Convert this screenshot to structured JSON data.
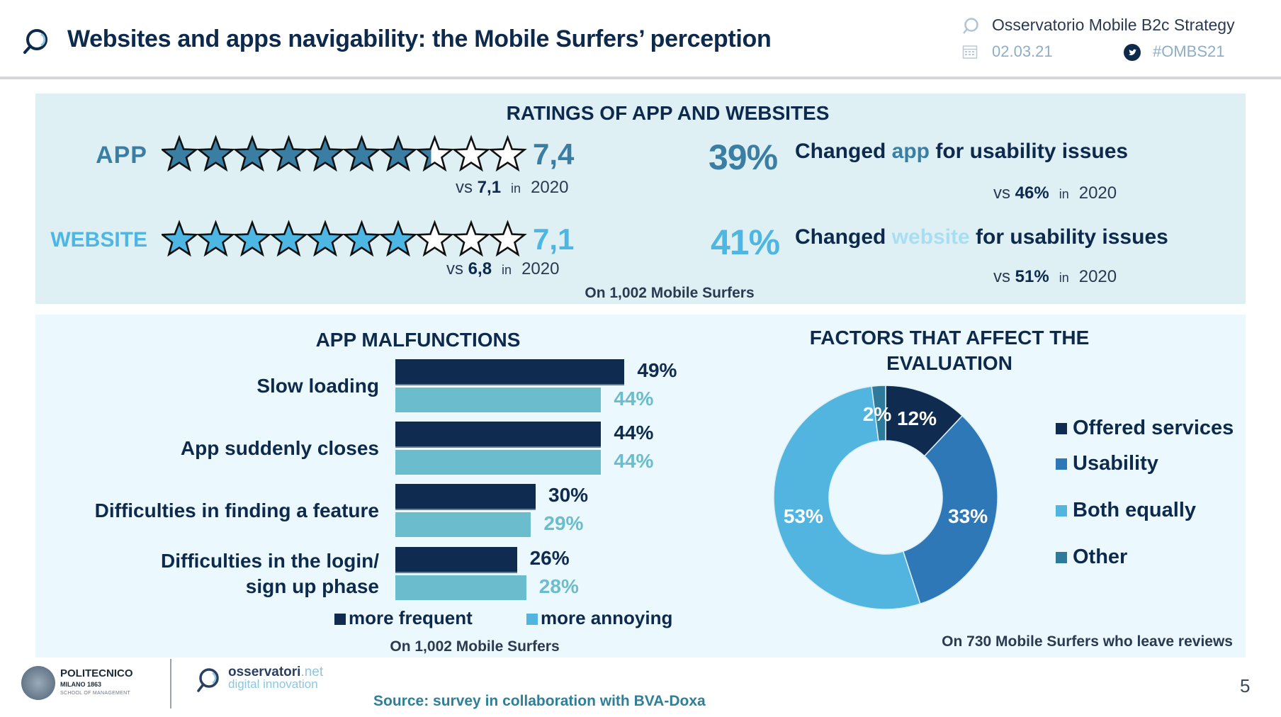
{
  "header": {
    "title": "Websites and apps navigability: the Mobile Surfers’ perception",
    "observatory": "Osservatorio Mobile B2c Strategy",
    "date": "02.03.21",
    "hashtag": "#OMBS21",
    "icons": {
      "logo": "osservatori-magnifier-icon",
      "calendar": "calendar-icon",
      "twitter": "twitter-icon"
    }
  },
  "ratings": {
    "title": "RATINGS OF APP AND WEBSITES",
    "app": {
      "label": "APP",
      "score": "7,4",
      "score_value": 7.4,
      "max": 10,
      "vs_prefix": "vs",
      "vs_value": "7,1",
      "vs_in": "in",
      "vs_year": "2020",
      "color": "#3a7fa3"
    },
    "website": {
      "label": "WEBSITE",
      "score": "7,1",
      "score_value": 7.1,
      "max": 10,
      "vs_prefix": "vs",
      "vs_value": "6,8",
      "vs_in": "in",
      "vs_year": "2020",
      "color": "#4db6e2"
    },
    "changed_app": {
      "pct": "39%",
      "text_before": "Changed ",
      "highlight": "app",
      "text_after": " for usability issues",
      "vs_prefix": "vs",
      "vs_value": "46%",
      "vs_in": "in",
      "vs_year": "2020"
    },
    "changed_website": {
      "pct": "41%",
      "text_before": "Changed ",
      "highlight": "website",
      "text_after": " for usability issues",
      "vs_prefix": "vs",
      "vs_value": "51%",
      "vs_in": "in",
      "vs_year": "2020"
    },
    "base": "On 1,002 Mobile Surfers"
  },
  "malfunctions": {
    "title": "APP MALFUNCTIONS",
    "legend": {
      "frequent": "more frequent",
      "annoying": "more annoying"
    },
    "base": "On 1,002 Mobile Surfers"
  },
  "factors": {
    "title": "FACTORS THAT AFFECT THE EVALUATION",
    "base": "On 730 Mobile Surfers who leave reviews"
  },
  "chart_data": [
    {
      "type": "bar",
      "orientation": "horizontal",
      "title": "APP MALFUNCTIONS",
      "categories": [
        "Slow loading",
        "App suddenly closes",
        "Difficulties in finding a feature",
        "Difficulties in the login/ sign up phase"
      ],
      "category_lines": [
        [
          "Slow loading"
        ],
        [
          "App suddenly closes"
        ],
        [
          "Difficulties in finding a feature"
        ],
        [
          "Difficulties in the login/",
          "sign up phase"
        ]
      ],
      "series": [
        {
          "name": "more frequent",
          "values": [
            49,
            44,
            30,
            26
          ],
          "labels": [
            "49%",
            "44%",
            "30%",
            "26%"
          ],
          "color": "#0f2b4f"
        },
        {
          "name": "more annoying",
          "values": [
            44,
            44,
            29,
            28
          ],
          "labels": [
            "44%",
            "44%",
            "29%",
            "28%"
          ],
          "color": "#6bbccc"
        }
      ],
      "unit": "%",
      "legend": "bottom",
      "grid": false
    },
    {
      "type": "pie",
      "donut": true,
      "title": "FACTORS THAT AFFECT THE EVALUATION",
      "categories": [
        "Offered services",
        "Usability",
        "Both equally",
        "Other"
      ],
      "values": [
        12,
        33,
        53,
        2
      ],
      "labels": [
        "12%",
        "33%",
        "53%",
        "2%"
      ],
      "colors": [
        "#0f2b4f",
        "#2f78b7",
        "#52b5e0",
        "#2e7a9a"
      ],
      "legend": "right"
    }
  ],
  "footer": {
    "polimi_name": "POLITECNICO",
    "polimi_sub1": "MILANO 1863",
    "polimi_sub2": "SCHOOL OF MANAGEMENT",
    "oss_name": "osservatori",
    "oss_net": ".net",
    "oss_sub": "digital innovation",
    "source": "Source: survey in collaboration with BVA-Doxa",
    "page_number": "5"
  }
}
